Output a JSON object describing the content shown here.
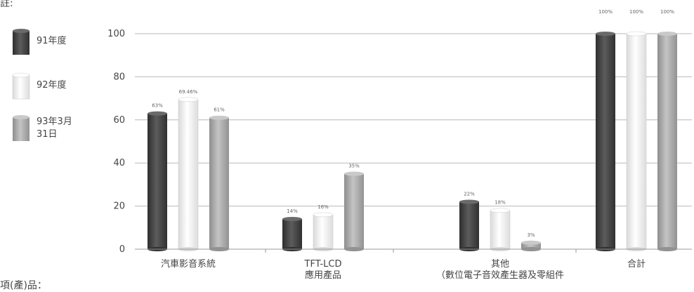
{
  "fragments": {
    "top": "註:",
    "bottom": "項(產)品："
  },
  "chart_data": {
    "type": "bar",
    "title": "",
    "xlabel": "",
    "ylabel": "",
    "ylim": [
      0,
      100
    ],
    "yticks": [
      0,
      20,
      40,
      60,
      80,
      100
    ],
    "grid": true,
    "legend": "left",
    "categories": [
      [
        "汽車影音系統"
      ],
      [
        "TFT-LCD",
        "應用產品"
      ],
      [
        "其他",
        "（數位電子音效產生器及零組件"
      ],
      [
        "合計"
      ]
    ],
    "series": [
      {
        "name": [
          "91年度"
        ],
        "color": "#4a4a4a",
        "values": [
          63,
          14,
          22,
          100
        ],
        "labels": [
          "63%",
          "14%",
          "22%",
          "100%"
        ]
      },
      {
        "name": [
          "92年度"
        ],
        "color": "#f2f2f2",
        "values": [
          69.46,
          16,
          18,
          100
        ],
        "labels": [
          "69.46%",
          "16%",
          "18%",
          "100%"
        ]
      },
      {
        "name": [
          "93年3月",
          "31日"
        ],
        "color": "#a6a6a6",
        "values": [
          61,
          35,
          3,
          100
        ],
        "labels": [
          "61%",
          "35%",
          "3%",
          "100%"
        ]
      }
    ]
  }
}
